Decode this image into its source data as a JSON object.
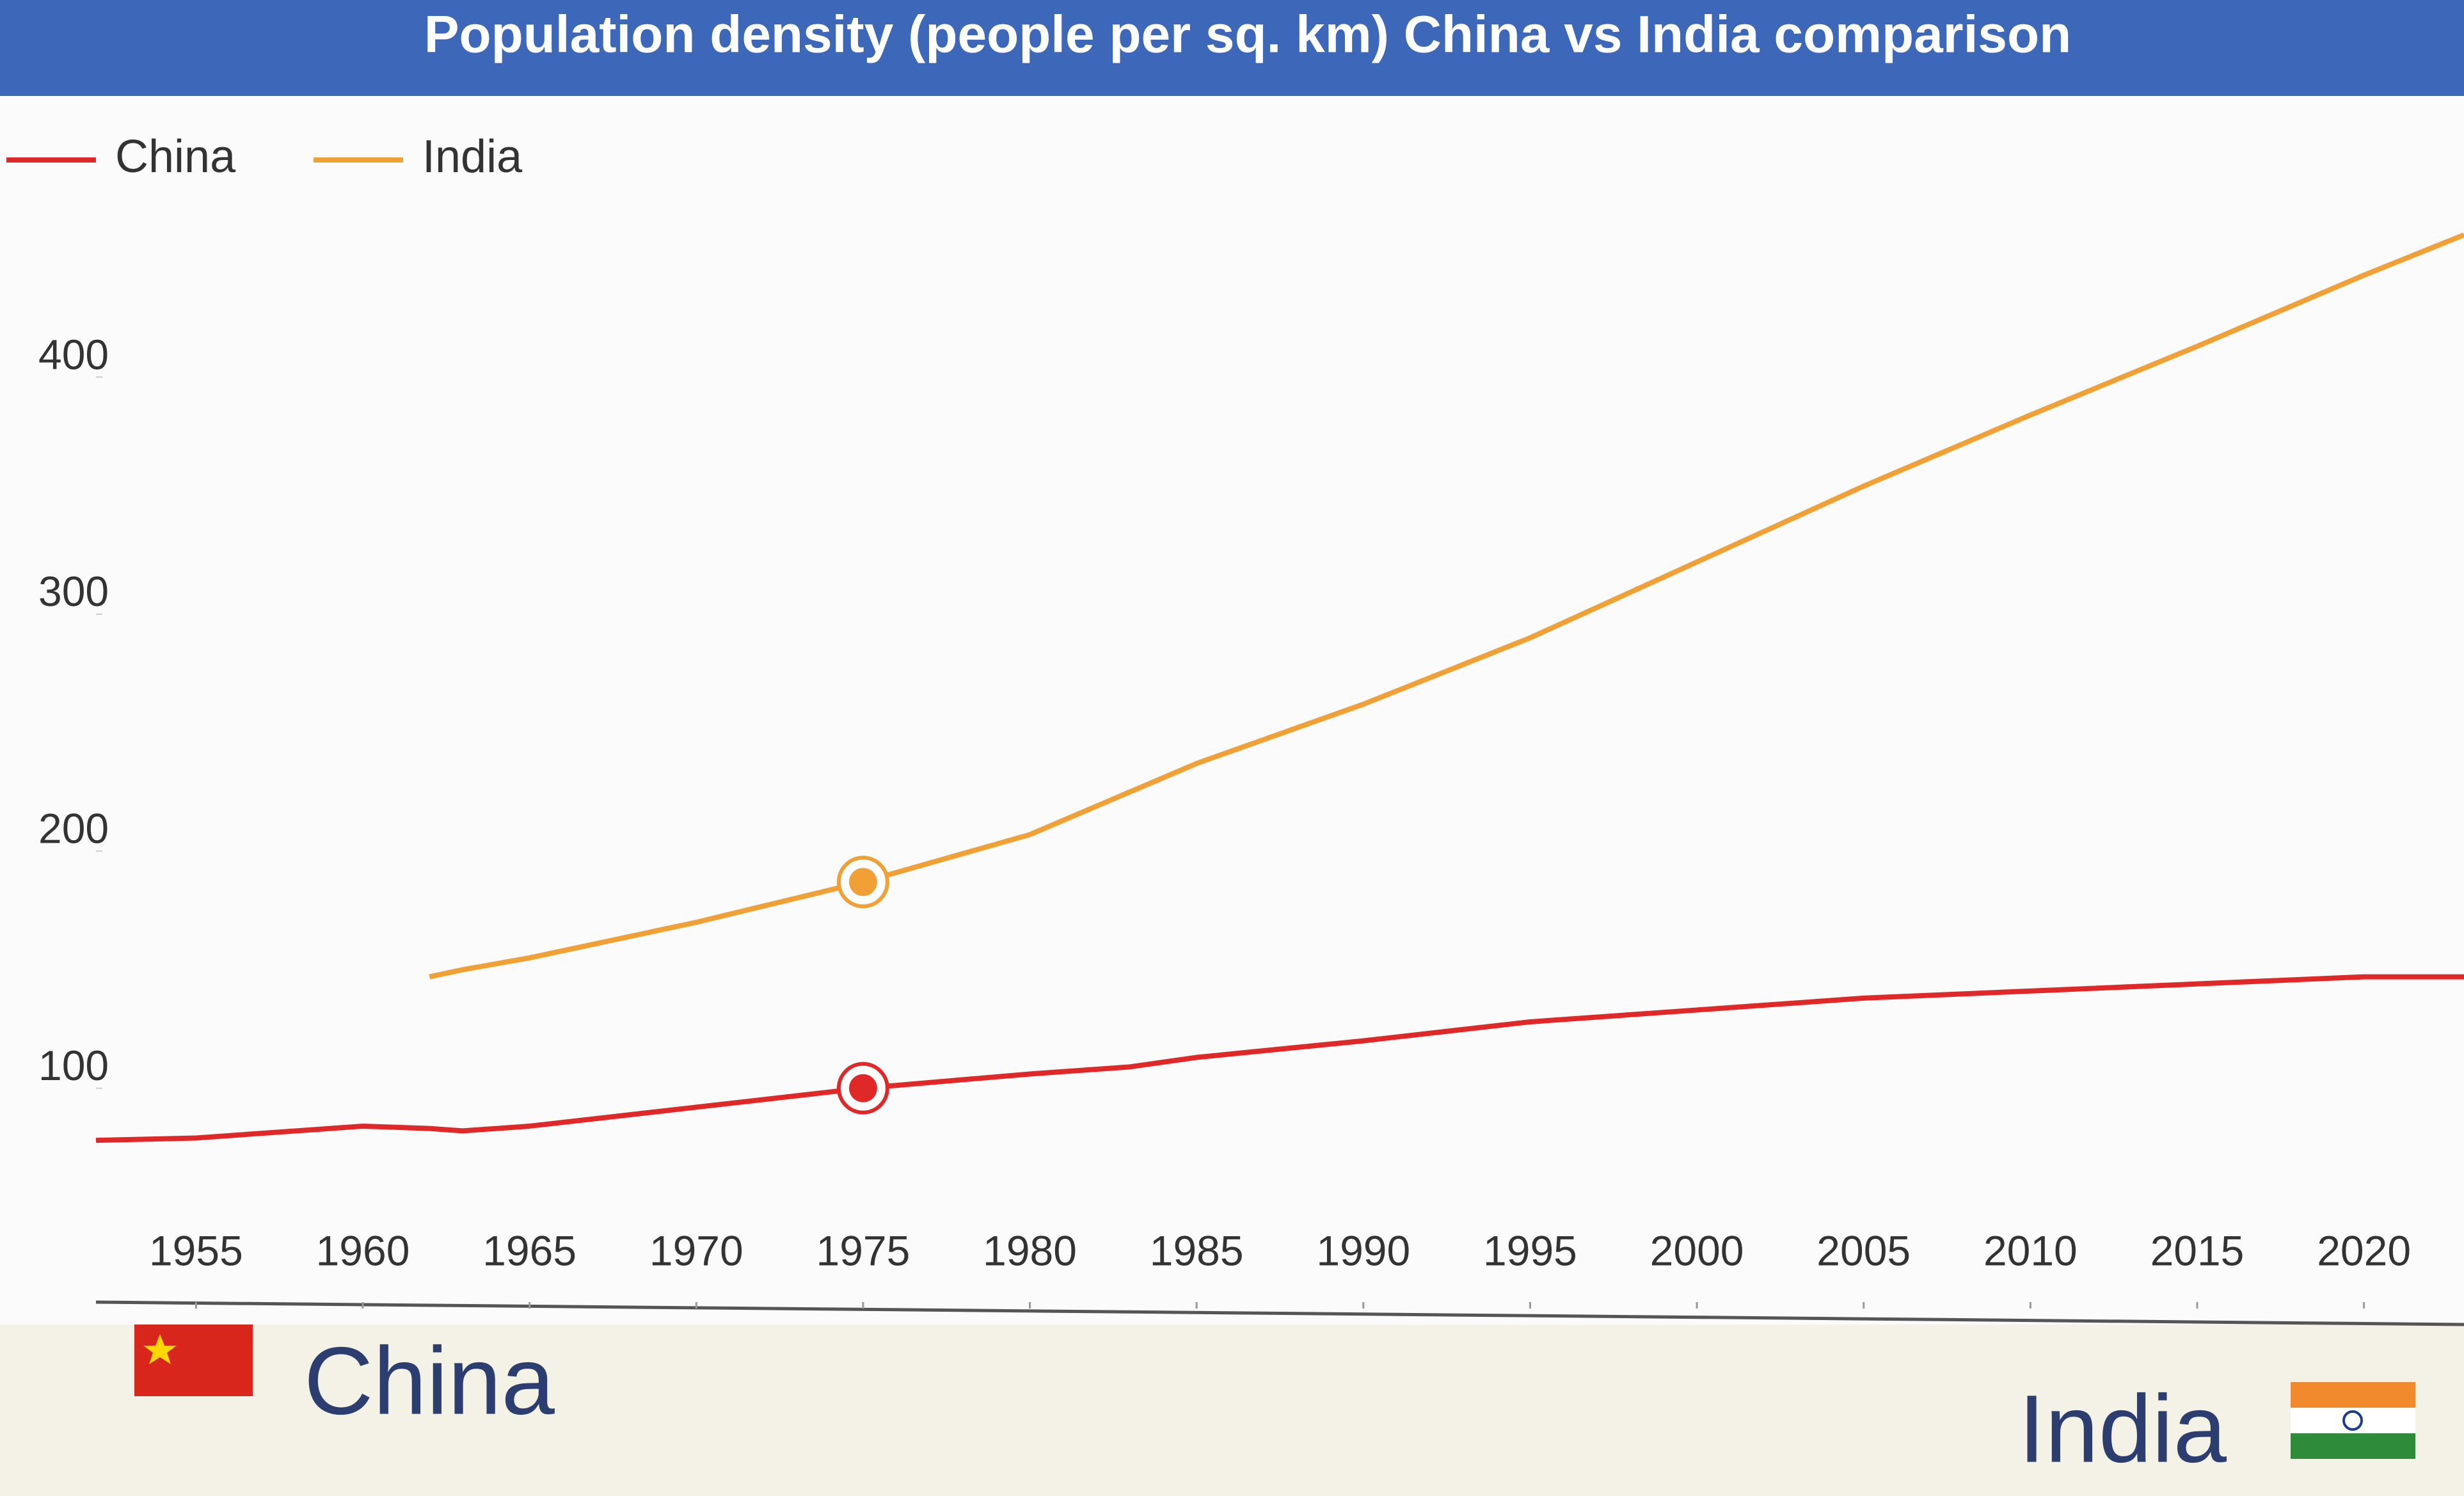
{
  "chart_data": {
    "type": "line",
    "title": "Population density (people per sq. km) China vs India comparison",
    "x": [
      1952,
      1955,
      1960,
      1962,
      1963,
      1965,
      1970,
      1975,
      1980,
      1983,
      1985,
      1990,
      1995,
      2000,
      2005,
      2010,
      2015,
      2020,
      2023
    ],
    "series": [
      {
        "name": "China",
        "color": "#e02828",
        "values": [
          78,
          79,
          84,
          83,
          82,
          84,
          92,
          100,
          106,
          109,
          113,
          120,
          128,
          133,
          138,
          141,
          144,
          147,
          147
        ]
      },
      {
        "name": "India",
        "color": "#f0a035",
        "values": [
          null,
          null,
          null,
          147,
          150,
          155,
          170,
          187,
          207,
          225,
          237,
          262,
          290,
          322,
          354,
          384,
          413,
          443,
          460
        ]
      }
    ],
    "highlight_index": 7,
    "xlim": [
      1952,
      2023
    ],
    "xticks": [
      1955,
      1960,
      1965,
      1970,
      1975,
      1980,
      1985,
      1990,
      1995,
      2000,
      2005,
      2010,
      2015,
      2020
    ],
    "ylim": [
      30,
      470
    ],
    "yticks": [
      100,
      200,
      300,
      400
    ],
    "legend": "top-left"
  },
  "footer": {
    "left": "China",
    "right": "India"
  }
}
